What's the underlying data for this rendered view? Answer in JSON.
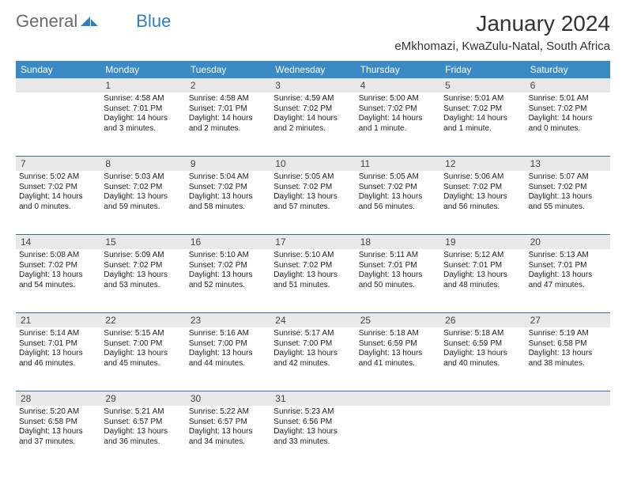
{
  "logo": {
    "text1": "General",
    "text2": "Blue"
  },
  "title": "January 2024",
  "location": "eMkhomazi, KwaZulu-Natal, South Africa",
  "colors": {
    "header_bg": "#3a8ac6",
    "divider": "#3a6c9a",
    "daynum_bg": "#e9e9e9",
    "logo_gray": "#6b6b6b",
    "logo_blue": "#2f7dc4"
  },
  "day_names": [
    "Sunday",
    "Monday",
    "Tuesday",
    "Wednesday",
    "Thursday",
    "Friday",
    "Saturday"
  ],
  "weeks": [
    {
      "nums": [
        "",
        "1",
        "2",
        "3",
        "4",
        "5",
        "6"
      ],
      "cells": [
        [
          "",
          "",
          "",
          ""
        ],
        [
          "Sunrise: 4:58 AM",
          "Sunset: 7:01 PM",
          "Daylight: 14 hours",
          "and 3 minutes."
        ],
        [
          "Sunrise: 4:58 AM",
          "Sunset: 7:01 PM",
          "Daylight: 14 hours",
          "and 2 minutes."
        ],
        [
          "Sunrise: 4:59 AM",
          "Sunset: 7:02 PM",
          "Daylight: 14 hours",
          "and 2 minutes."
        ],
        [
          "Sunrise: 5:00 AM",
          "Sunset: 7:02 PM",
          "Daylight: 14 hours",
          "and 1 minute."
        ],
        [
          "Sunrise: 5:01 AM",
          "Sunset: 7:02 PM",
          "Daylight: 14 hours",
          "and 1 minute."
        ],
        [
          "Sunrise: 5:01 AM",
          "Sunset: 7:02 PM",
          "Daylight: 14 hours",
          "and 0 minutes."
        ]
      ]
    },
    {
      "nums": [
        "7",
        "8",
        "9",
        "10",
        "11",
        "12",
        "13"
      ],
      "cells": [
        [
          "Sunrise: 5:02 AM",
          "Sunset: 7:02 PM",
          "Daylight: 14 hours",
          "and 0 minutes."
        ],
        [
          "Sunrise: 5:03 AM",
          "Sunset: 7:02 PM",
          "Daylight: 13 hours",
          "and 59 minutes."
        ],
        [
          "Sunrise: 5:04 AM",
          "Sunset: 7:02 PM",
          "Daylight: 13 hours",
          "and 58 minutes."
        ],
        [
          "Sunrise: 5:05 AM",
          "Sunset: 7:02 PM",
          "Daylight: 13 hours",
          "and 57 minutes."
        ],
        [
          "Sunrise: 5:05 AM",
          "Sunset: 7:02 PM",
          "Daylight: 13 hours",
          "and 56 minutes."
        ],
        [
          "Sunrise: 5:06 AM",
          "Sunset: 7:02 PM",
          "Daylight: 13 hours",
          "and 56 minutes."
        ],
        [
          "Sunrise: 5:07 AM",
          "Sunset: 7:02 PM",
          "Daylight: 13 hours",
          "and 55 minutes."
        ]
      ]
    },
    {
      "nums": [
        "14",
        "15",
        "16",
        "17",
        "18",
        "19",
        "20"
      ],
      "cells": [
        [
          "Sunrise: 5:08 AM",
          "Sunset: 7:02 PM",
          "Daylight: 13 hours",
          "and 54 minutes."
        ],
        [
          "Sunrise: 5:09 AM",
          "Sunset: 7:02 PM",
          "Daylight: 13 hours",
          "and 53 minutes."
        ],
        [
          "Sunrise: 5:10 AM",
          "Sunset: 7:02 PM",
          "Daylight: 13 hours",
          "and 52 minutes."
        ],
        [
          "Sunrise: 5:10 AM",
          "Sunset: 7:02 PM",
          "Daylight: 13 hours",
          "and 51 minutes."
        ],
        [
          "Sunrise: 5:11 AM",
          "Sunset: 7:01 PM",
          "Daylight: 13 hours",
          "and 50 minutes."
        ],
        [
          "Sunrise: 5:12 AM",
          "Sunset: 7:01 PM",
          "Daylight: 13 hours",
          "and 48 minutes."
        ],
        [
          "Sunrise: 5:13 AM",
          "Sunset: 7:01 PM",
          "Daylight: 13 hours",
          "and 47 minutes."
        ]
      ]
    },
    {
      "nums": [
        "21",
        "22",
        "23",
        "24",
        "25",
        "26",
        "27"
      ],
      "cells": [
        [
          "Sunrise: 5:14 AM",
          "Sunset: 7:01 PM",
          "Daylight: 13 hours",
          "and 46 minutes."
        ],
        [
          "Sunrise: 5:15 AM",
          "Sunset: 7:00 PM",
          "Daylight: 13 hours",
          "and 45 minutes."
        ],
        [
          "Sunrise: 5:16 AM",
          "Sunset: 7:00 PM",
          "Daylight: 13 hours",
          "and 44 minutes."
        ],
        [
          "Sunrise: 5:17 AM",
          "Sunset: 7:00 PM",
          "Daylight: 13 hours",
          "and 42 minutes."
        ],
        [
          "Sunrise: 5:18 AM",
          "Sunset: 6:59 PM",
          "Daylight: 13 hours",
          "and 41 minutes."
        ],
        [
          "Sunrise: 5:18 AM",
          "Sunset: 6:59 PM",
          "Daylight: 13 hours",
          "and 40 minutes."
        ],
        [
          "Sunrise: 5:19 AM",
          "Sunset: 6:58 PM",
          "Daylight: 13 hours",
          "and 38 minutes."
        ]
      ]
    },
    {
      "nums": [
        "28",
        "29",
        "30",
        "31",
        "",
        "",
        ""
      ],
      "cells": [
        [
          "Sunrise: 5:20 AM",
          "Sunset: 6:58 PM",
          "Daylight: 13 hours",
          "and 37 minutes."
        ],
        [
          "Sunrise: 5:21 AM",
          "Sunset: 6:57 PM",
          "Daylight: 13 hours",
          "and 36 minutes."
        ],
        [
          "Sunrise: 5:22 AM",
          "Sunset: 6:57 PM",
          "Daylight: 13 hours",
          "and 34 minutes."
        ],
        [
          "Sunrise: 5:23 AM",
          "Sunset: 6:56 PM",
          "Daylight: 13 hours",
          "and 33 minutes."
        ],
        [
          "",
          "",
          "",
          ""
        ],
        [
          "",
          "",
          "",
          ""
        ],
        [
          "",
          "",
          "",
          ""
        ]
      ]
    }
  ]
}
